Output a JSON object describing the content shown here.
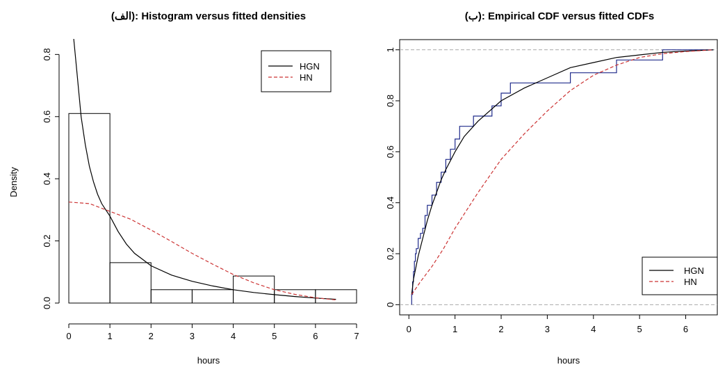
{
  "chart_data": [
    {
      "type": "bar",
      "title": "(الف): Histogram versus fitted densities",
      "xlabel": "hours",
      "ylabel": "Density",
      "xlim": [
        0,
        7
      ],
      "ylim": [
        0,
        0.85
      ],
      "x_ticks": [
        "0",
        "1",
        "2",
        "3",
        "4",
        "5",
        "6",
        "7"
      ],
      "y_ticks": [
        "0.0",
        "0.2",
        "0.4",
        "0.6",
        "0.8"
      ],
      "grid": false,
      "legend_position": "top-right",
      "bins": [
        {
          "x0": 0,
          "x1": 1,
          "density": 0.61
        },
        {
          "x0": 1,
          "x1": 2,
          "density": 0.13
        },
        {
          "x0": 2,
          "x1": 3,
          "density": 0.043
        },
        {
          "x0": 3,
          "x1": 4,
          "density": 0.043
        },
        {
          "x0": 4,
          "x1": 5,
          "density": 0.087
        },
        {
          "x0": 5,
          "x1": 6,
          "density": 0.043
        },
        {
          "x0": 6,
          "x1": 7,
          "density": 0.043
        }
      ],
      "series": [
        {
          "name": "HGN",
          "color": "#000000",
          "dash": "solid",
          "x": [
            0.12,
            0.2,
            0.3,
            0.4,
            0.5,
            0.6,
            0.7,
            0.8,
            0.9,
            1.0,
            1.2,
            1.4,
            1.6,
            1.8,
            2.0,
            2.5,
            3.0,
            3.5,
            4.0,
            4.5,
            5.0,
            5.5,
            6.0,
            6.5
          ],
          "y": [
            0.85,
            0.74,
            0.6,
            0.51,
            0.44,
            0.39,
            0.35,
            0.32,
            0.3,
            0.28,
            0.23,
            0.19,
            0.16,
            0.14,
            0.12,
            0.09,
            0.07,
            0.055,
            0.043,
            0.034,
            0.027,
            0.021,
            0.016,
            0.012
          ]
        },
        {
          "name": "HN",
          "color": "#cc3333",
          "dash": "dashed",
          "x": [
            0,
            0.5,
            1.0,
            1.5,
            2.0,
            2.5,
            3.0,
            3.5,
            4.0,
            4.5,
            5.0,
            5.5,
            6.0,
            6.5
          ],
          "y": [
            0.325,
            0.32,
            0.295,
            0.27,
            0.235,
            0.198,
            0.16,
            0.125,
            0.092,
            0.065,
            0.043,
            0.028,
            0.017,
            0.01
          ]
        }
      ]
    },
    {
      "type": "line",
      "title": "(ب): Empirical CDF versus fitted CDFs",
      "xlabel": "hours",
      "ylabel": "",
      "xlim": [
        -0.2,
        6.7
      ],
      "ylim": [
        -0.04,
        1.04
      ],
      "x_ticks": [
        "0",
        "1",
        "2",
        "3",
        "4",
        "5",
        "6"
      ],
      "y_ticks": [
        "0",
        "0.2",
        "0.4",
        "0.6",
        "0.8",
        "1"
      ],
      "grid": false,
      "reference_lines": [
        0,
        1
      ],
      "legend_position": "bottom-right",
      "empirical": {
        "color": "#1f2a8a",
        "steps": [
          [
            0.06,
            0.04
          ],
          [
            0.08,
            0.09
          ],
          [
            0.1,
            0.13
          ],
          [
            0.12,
            0.17
          ],
          [
            0.14,
            0.2
          ],
          [
            0.16,
            0.22
          ],
          [
            0.2,
            0.26
          ],
          [
            0.25,
            0.28
          ],
          [
            0.3,
            0.3
          ],
          [
            0.35,
            0.35
          ],
          [
            0.4,
            0.39
          ],
          [
            0.5,
            0.43
          ],
          [
            0.6,
            0.48
          ],
          [
            0.7,
            0.52
          ],
          [
            0.8,
            0.57
          ],
          [
            0.9,
            0.61
          ],
          [
            1.0,
            0.65
          ],
          [
            1.1,
            0.7
          ],
          [
            1.4,
            0.74
          ],
          [
            1.8,
            0.78
          ],
          [
            2.0,
            0.83
          ],
          [
            2.2,
            0.87
          ],
          [
            2.3,
            0.87
          ],
          [
            3.1,
            0.87
          ],
          [
            3.5,
            0.91
          ],
          [
            4.1,
            0.91
          ],
          [
            4.5,
            0.96
          ],
          [
            5.2,
            0.96
          ],
          [
            5.5,
            1.0
          ],
          [
            6.6,
            1.0
          ]
        ]
      },
      "series": [
        {
          "name": "HGN",
          "color": "#000000",
          "dash": "solid",
          "x": [
            0.06,
            0.1,
            0.2,
            0.3,
            0.4,
            0.5,
            0.6,
            0.7,
            0.8,
            1.0,
            1.2,
            1.5,
            2.0,
            2.5,
            3.0,
            3.5,
            4.0,
            4.5,
            5.0,
            5.5,
            6.0,
            6.6
          ],
          "y": [
            0.04,
            0.1,
            0.19,
            0.26,
            0.33,
            0.39,
            0.44,
            0.49,
            0.53,
            0.6,
            0.66,
            0.72,
            0.8,
            0.85,
            0.89,
            0.93,
            0.95,
            0.97,
            0.98,
            0.99,
            0.995,
            1.0
          ]
        },
        {
          "name": "HN",
          "color": "#cc3333",
          "dash": "dashed",
          "x": [
            0.06,
            0.25,
            0.5,
            0.75,
            1.0,
            1.25,
            1.5,
            2.0,
            2.5,
            3.0,
            3.5,
            4.0,
            4.5,
            5.0,
            5.5,
            6.0,
            6.6
          ],
          "y": [
            0.04,
            0.09,
            0.15,
            0.22,
            0.3,
            0.37,
            0.44,
            0.57,
            0.67,
            0.76,
            0.84,
            0.9,
            0.94,
            0.97,
            0.985,
            0.993,
            1.0
          ]
        }
      ]
    }
  ]
}
